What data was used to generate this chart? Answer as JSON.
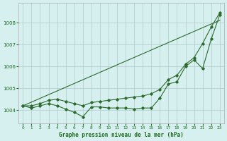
{
  "title": "Graphe pression niveau de la mer (hPa)",
  "bg_color": "#d6f0f0",
  "grid_color": "#b0c8c8",
  "line_color": "#2d6a2d",
  "xlim": [
    -0.5,
    23.5
  ],
  "ylim": [
    1003.4,
    1008.9
  ],
  "yticks": [
    1004,
    1005,
    1006,
    1007,
    1008
  ],
  "xticks": [
    0,
    1,
    2,
    3,
    4,
    5,
    6,
    7,
    8,
    9,
    10,
    11,
    12,
    13,
    14,
    15,
    16,
    17,
    18,
    19,
    20,
    21,
    22,
    23
  ],
  "hours": [
    0,
    1,
    2,
    3,
    4,
    5,
    6,
    7,
    8,
    9,
    10,
    11,
    12,
    13,
    14,
    15,
    16,
    17,
    18,
    19,
    20,
    21,
    22,
    23
  ],
  "line_actual": [
    1004.2,
    1004.1,
    1004.2,
    1004.3,
    1004.2,
    1004.05,
    1003.9,
    1003.7,
    1004.15,
    1004.15,
    1004.1,
    1004.1,
    1004.1,
    1004.05,
    1004.1,
    1004.1,
    1004.55,
    1005.2,
    1005.3,
    1006.0,
    1006.3,
    1005.9,
    1007.25,
    1008.35
  ],
  "line_high": [
    1004.2,
    1004.2,
    1004.3,
    1004.45,
    1004.5,
    1004.4,
    1004.3,
    1004.2,
    1004.35,
    1004.4,
    1004.45,
    1004.5,
    1004.55,
    1004.6,
    1004.65,
    1004.75,
    1004.95,
    1005.4,
    1005.6,
    1006.1,
    1006.4,
    1007.05,
    1007.8,
    1008.45
  ],
  "line_straight": [
    1004.2,
    1004.37,
    1004.54,
    1004.71,
    1004.88,
    1005.05,
    1005.22,
    1005.39,
    1005.56,
    1005.73,
    1005.9,
    1006.07,
    1006.24,
    1006.41,
    1006.58,
    1006.75,
    1006.92,
    1007.09,
    1007.26,
    1007.43,
    1007.6,
    1007.77,
    1007.94,
    1008.1
  ]
}
